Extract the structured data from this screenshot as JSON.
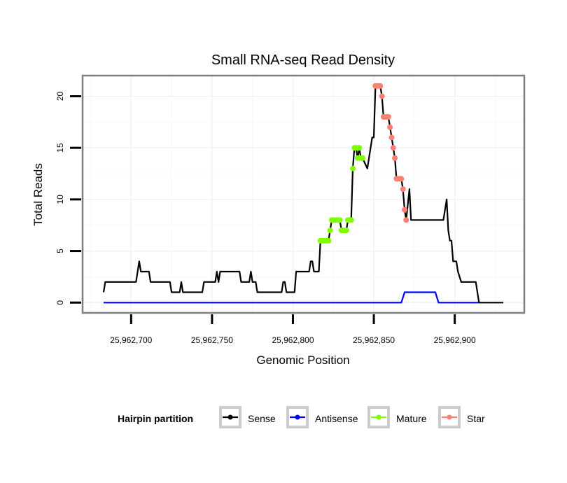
{
  "chart_data": {
    "type": "line",
    "title": "Small RNA-seq Read Density",
    "xlabel": "Genomic Position",
    "ylabel": "Total Reads",
    "xlim": [
      25962670,
      25962943
    ],
    "ylim": [
      -1,
      22
    ],
    "x_ticks": [
      25962700,
      25962750,
      25962800,
      25962850,
      25962900
    ],
    "x_tick_labels": [
      "25,962,700",
      "25,962,750",
      "25,962,800",
      "25,962,850",
      "25,962,900"
    ],
    "y_ticks": [
      0,
      5,
      10,
      15,
      20
    ],
    "y_tick_labels": [
      "0",
      "5",
      "10",
      "15",
      "20"
    ],
    "grid": true,
    "legend": {
      "title": "Hairpin partition",
      "placement": "bottom",
      "entries": [
        {
          "name": "Sense",
          "color": "#000000"
        },
        {
          "name": "Antisense",
          "color": "#0000FF"
        },
        {
          "name": "Mature",
          "color": "#7FFF00"
        },
        {
          "name": "Star",
          "color": "#FA8072"
        }
      ]
    },
    "series": [
      {
        "name": "Sense",
        "color": "#000000",
        "style": "line",
        "x": [
          25962683,
          25962684,
          25962703,
          25962705,
          25962706,
          25962711,
          25962712,
          25962724,
          25962725,
          25962730,
          25962731,
          25962732,
          25962744,
          25962745,
          25962752,
          25962753,
          25962754,
          25962755,
          25962767,
          25962768,
          25962773,
          25962774,
          25962775,
          25962777,
          25962778,
          25962793,
          25962794,
          25962795,
          25962796,
          25962801,
          25962802,
          25962810,
          25962811,
          25962812,
          25962813,
          25962816,
          25962817,
          25962822,
          25962823,
          25962824,
          25962829,
          25962830,
          25962833,
          25962834,
          25962836,
          25962837,
          25962838,
          25962839,
          25962840,
          25962841,
          25962842,
          25962843,
          25962846,
          25962849,
          25962850,
          25962851,
          25962854,
          25962855,
          25962856,
          25962859,
          25962860,
          25962861,
          25962862,
          25962863,
          25962864,
          25962867,
          25962868,
          25962869,
          25962870,
          25962872,
          25962873,
          25962893,
          25962895,
          25962896,
          25962897,
          25962898,
          25962899,
          25962901,
          25962902,
          25962904,
          25962913,
          25962915,
          25962930
        ],
        "y": [
          1,
          2,
          2,
          4,
          3,
          3,
          2,
          2,
          1,
          1,
          2,
          1,
          1,
          2,
          2,
          3,
          2,
          3,
          3,
          2,
          2,
          3,
          2,
          2,
          1,
          1,
          2,
          2,
          1,
          1,
          3,
          3,
          4,
          4,
          3,
          3,
          6,
          6,
          7,
          8,
          8,
          7,
          7,
          8,
          8,
          13,
          15,
          15,
          14,
          15,
          14,
          14,
          13,
          16,
          16,
          21,
          21,
          20,
          18,
          18,
          17,
          16,
          15,
          14,
          12,
          12,
          11,
          9,
          8,
          11,
          8,
          8,
          10,
          7,
          6,
          6,
          4,
          4,
          3,
          2,
          2,
          0,
          0
        ]
      },
      {
        "name": "Antisense",
        "color": "#0000FF",
        "style": "line",
        "x": [
          25962683,
          25962867,
          25962869,
          25962888,
          25962890,
          25962915
        ],
        "y": [
          0,
          0,
          1,
          1,
          0,
          0
        ]
      },
      {
        "name": "Mature",
        "color": "#7FFF00",
        "style": "points",
        "x": [
          25962817,
          25962818,
          25962819,
          25962820,
          25962821,
          25962822,
          25962823,
          25962824,
          25962825,
          25962826,
          25962827,
          25962828,
          25962829,
          25962830,
          25962831,
          25962832,
          25962833,
          25962834,
          25962835,
          25962836,
          25962837,
          25962838,
          25962839,
          25962840,
          25962841,
          25962842,
          25962843
        ],
        "y": [
          6,
          6,
          6,
          6,
          6,
          6,
          7,
          8,
          8,
          8,
          8,
          8,
          8,
          7,
          7,
          7,
          7,
          8,
          8,
          8,
          13,
          15,
          15,
          14,
          15,
          14,
          14
        ]
      },
      {
        "name": "Star",
        "color": "#FA8072",
        "style": "points",
        "x": [
          25962851,
          25962852,
          25962853,
          25962854,
          25962855,
          25962856,
          25962857,
          25962858,
          25962859,
          25962860,
          25962861,
          25962862,
          25962863,
          25962864,
          25962865,
          25962866,
          25962867,
          25962868,
          25962869,
          25962870
        ],
        "y": [
          21,
          21,
          21,
          21,
          20,
          18,
          18,
          18,
          18,
          17,
          16,
          15,
          14,
          12,
          12,
          12,
          12,
          11,
          9,
          8
        ]
      }
    ]
  }
}
